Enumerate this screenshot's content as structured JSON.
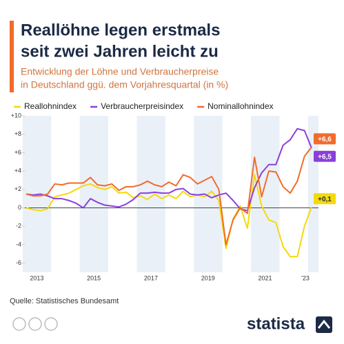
{
  "chart_data": {
    "type": "line",
    "title": [
      "Reallöhne legen erstmals",
      "seit zwei Jahren leicht zu"
    ],
    "subtitle": [
      "Entwicklung der Löhne und Verbraucherpreise",
      "in Deutschland ggü. dem Vorjahresquartal (in %)"
    ],
    "categories": [
      null,
      "2013",
      null,
      null,
      null,
      null,
      null,
      null,
      null,
      "2015",
      null,
      null,
      null,
      null,
      null,
      null,
      null,
      "2017",
      null,
      null,
      null,
      null,
      null,
      null,
      null,
      "2019",
      null,
      null,
      null,
      null,
      null,
      null,
      null,
      "2021",
      null,
      null,
      null,
      null,
      null,
      null,
      "'23"
    ],
    "series": [
      {
        "name": "Reallohnindex",
        "color": "#f5d90a",
        "values": [
          0.0,
          -0.2,
          -0.3,
          -0.1,
          1.2,
          1.4,
          1.6,
          2.0,
          2.4,
          2.6,
          2.2,
          2.0,
          2.3,
          1.6,
          1.7,
          1.1,
          1.3,
          0.9,
          1.5,
          1.0,
          1.4,
          1.0,
          1.8,
          1.2,
          1.4,
          1.2,
          1.8,
          0.8,
          -4.4,
          -1.2,
          0.2,
          -2.2,
          3.6,
          0.2,
          -1.3,
          -1.6,
          -4.2,
          -5.3,
          -5.3,
          -2.0,
          0.1
        ],
        "value_labels": [
          null,
          null,
          null,
          null,
          null,
          null,
          null,
          null,
          null,
          null,
          null,
          null,
          null,
          null,
          null,
          null,
          null,
          null,
          null,
          null,
          null,
          null,
          null,
          null,
          null,
          null,
          null,
          null,
          null,
          null,
          null,
          null,
          null,
          null,
          null,
          null,
          null,
          null,
          null,
          null,
          "+0,1"
        ]
      },
      {
        "name": "Verbraucherpreisindex",
        "color": "#8b3fd9",
        "values": [
          1.5,
          1.4,
          1.5,
          1.3,
          1.0,
          1.0,
          0.8,
          0.5,
          0.0,
          1.0,
          0.6,
          0.3,
          0.2,
          0.1,
          0.4,
          0.9,
          1.6,
          1.6,
          1.7,
          1.6,
          1.6,
          2.0,
          2.1,
          1.5,
          1.4,
          1.5,
          1.1,
          1.4,
          1.6,
          0.8,
          -0.1,
          -0.3,
          2.2,
          3.8,
          4.7,
          4.7,
          6.8,
          7.4,
          8.6,
          8.4,
          6.5
        ],
        "value_labels": [
          null,
          null,
          null,
          null,
          null,
          null,
          null,
          null,
          null,
          null,
          null,
          null,
          null,
          null,
          null,
          null,
          null,
          null,
          null,
          null,
          null,
          null,
          null,
          null,
          null,
          null,
          null,
          null,
          null,
          null,
          null,
          null,
          null,
          null,
          null,
          null,
          null,
          null,
          null,
          null,
          "+6,5"
        ]
      },
      {
        "name": "Nominallohnindex",
        "color": "#f26b2a",
        "values": [
          1.5,
          1.3,
          1.3,
          1.5,
          2.6,
          2.5,
          2.7,
          2.7,
          2.7,
          3.3,
          2.5,
          2.4,
          2.6,
          1.9,
          2.3,
          2.3,
          2.5,
          2.9,
          2.5,
          2.3,
          2.8,
          2.4,
          3.6,
          3.3,
          2.6,
          3.0,
          3.4,
          2.0,
          -4.0,
          -1.3,
          0.0,
          -0.6,
          5.5,
          1.2,
          4.0,
          3.9,
          2.3,
          1.6,
          2.9,
          5.6,
          6.6
        ],
        "value_labels": [
          null,
          null,
          null,
          null,
          null,
          null,
          null,
          null,
          null,
          null,
          null,
          null,
          null,
          null,
          null,
          null,
          null,
          null,
          null,
          null,
          null,
          null,
          null,
          null,
          null,
          null,
          null,
          null,
          null,
          null,
          null,
          null,
          null,
          null,
          null,
          null,
          null,
          null,
          null,
          null,
          "+6,6"
        ]
      }
    ],
    "ylim": [
      -7,
      10
    ],
    "yticks": [
      {
        "value": 10,
        "label": "+10"
      },
      {
        "value": 8,
        "label": "+8"
      },
      {
        "value": 6,
        "label": "+6"
      },
      {
        "value": 4,
        "label": "+4"
      },
      {
        "value": 2,
        "label": "+2"
      },
      0,
      -2,
      -4,
      -6
    ],
    "grid": false,
    "source": "Quelle: Statistisches Bundesamt",
    "brand": "statista"
  }
}
